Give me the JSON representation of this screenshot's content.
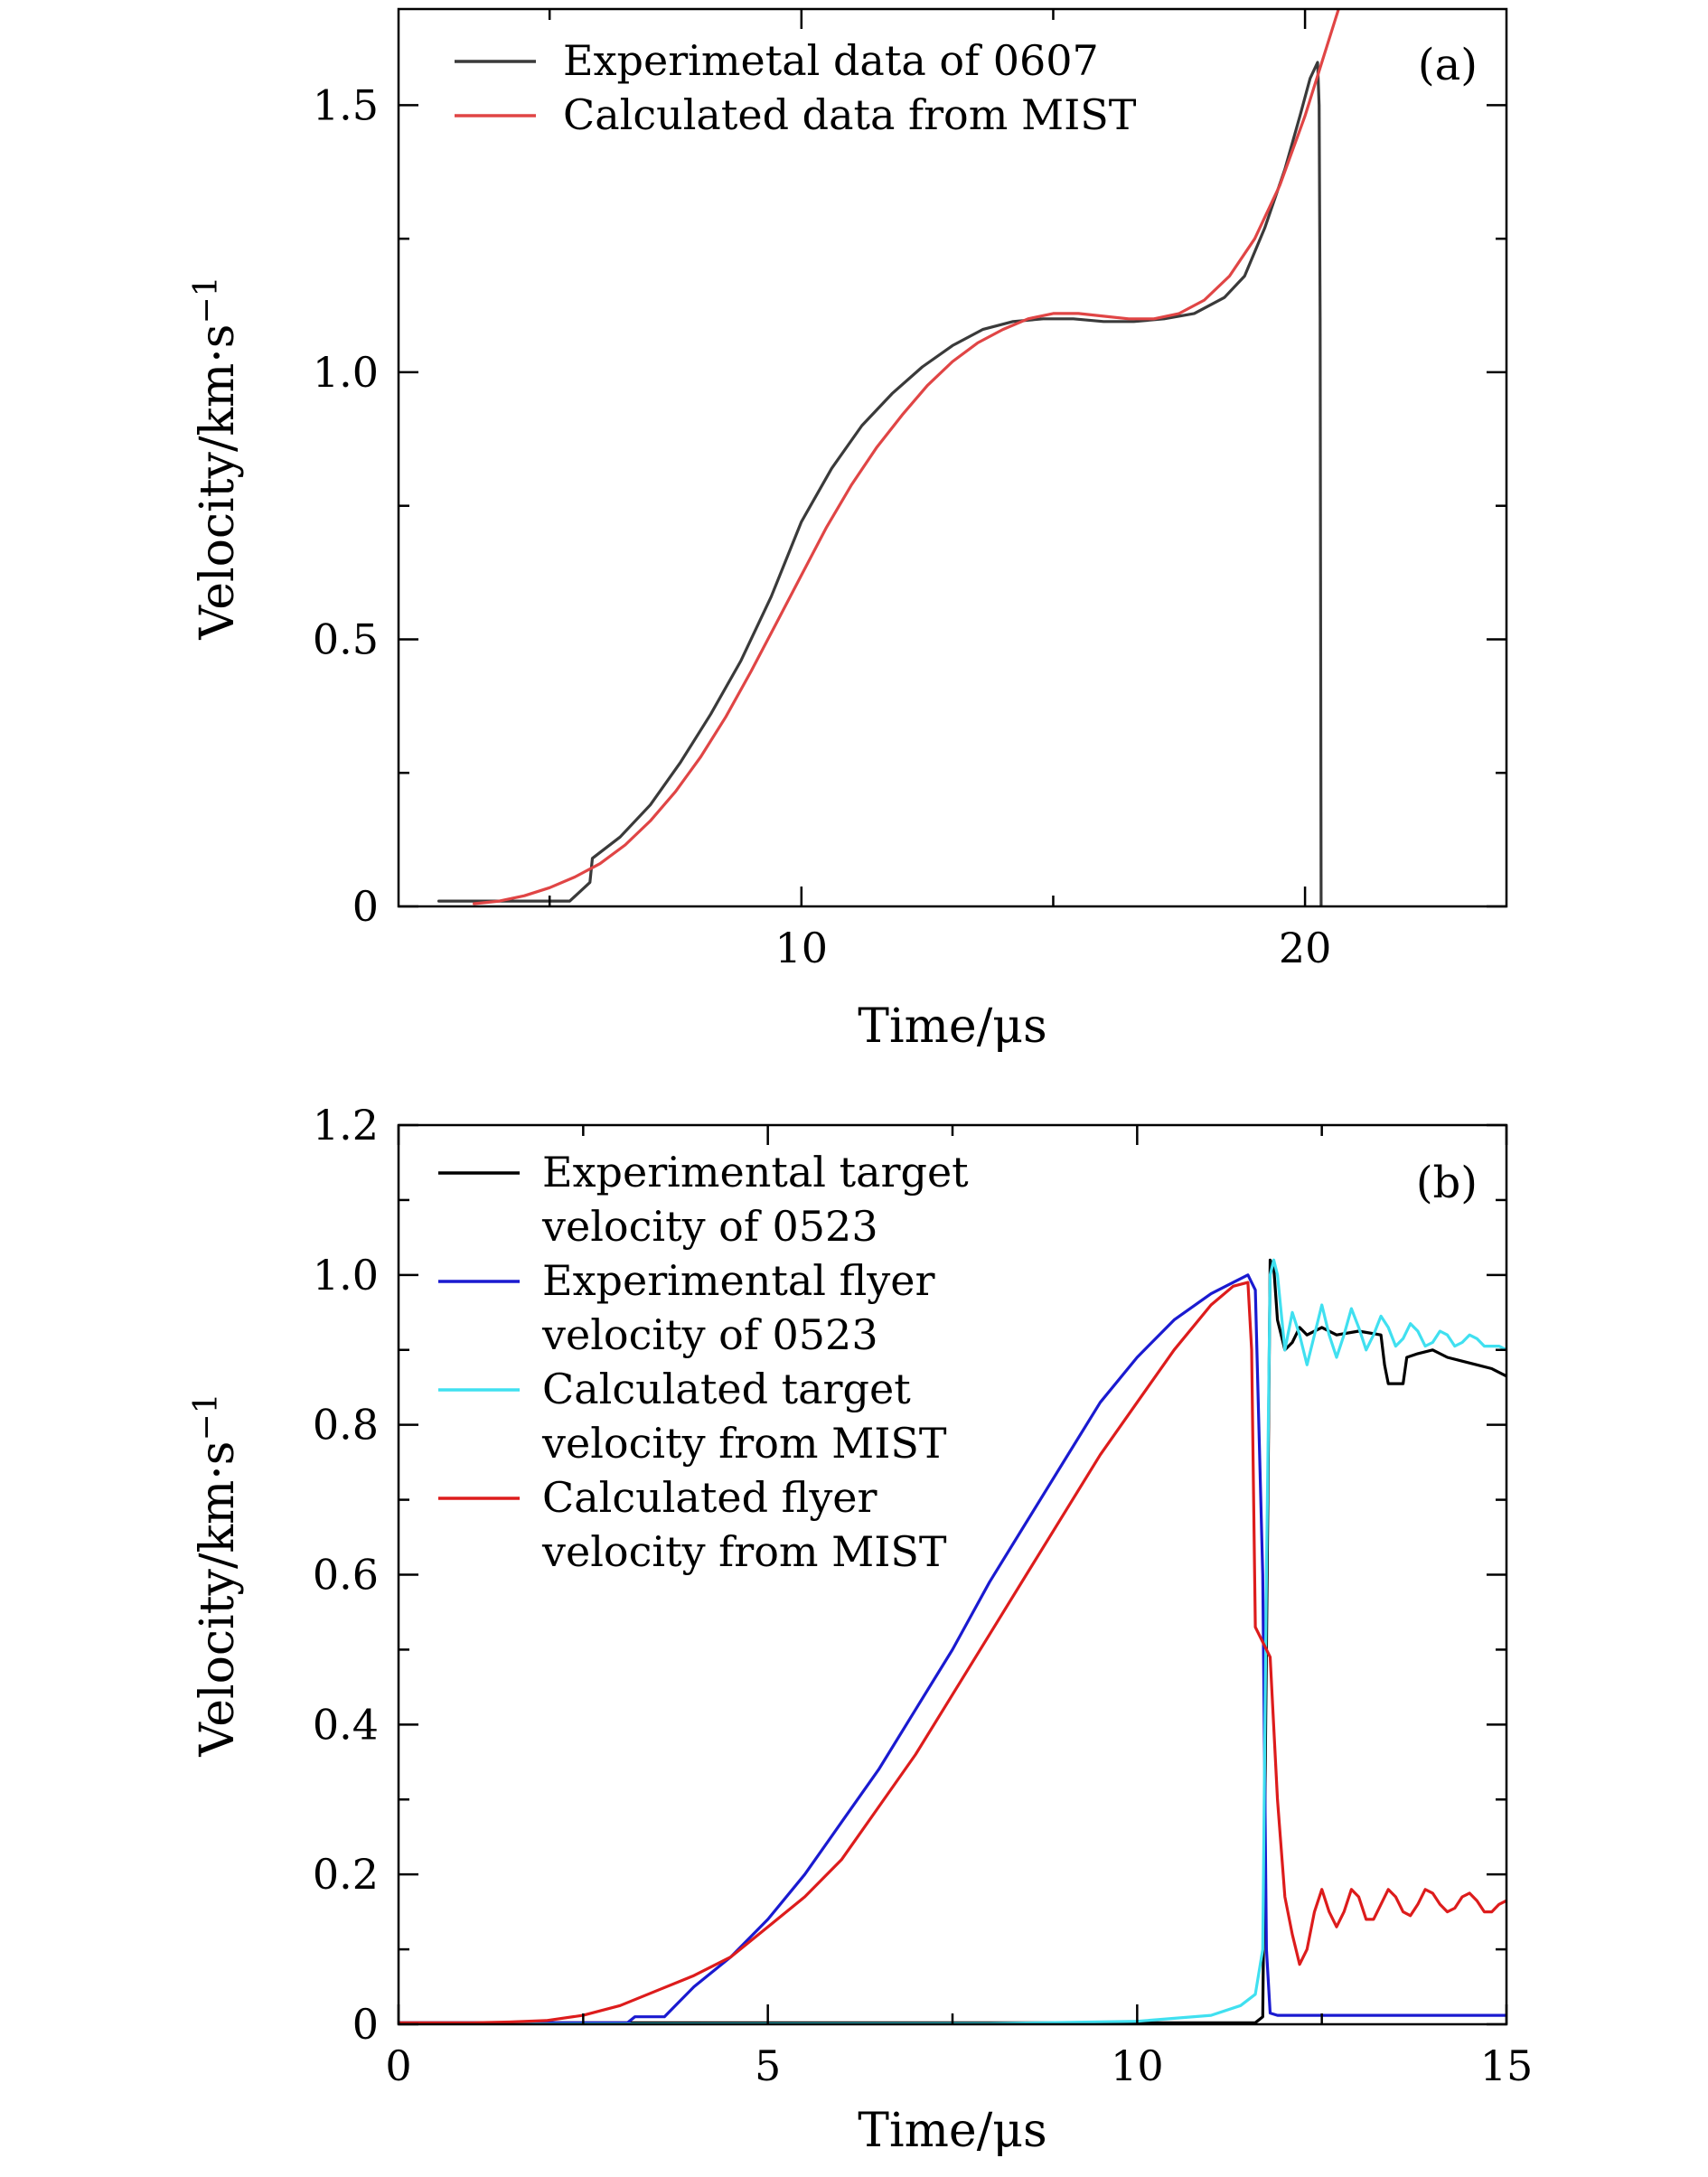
{
  "chart_data": [
    {
      "type": "line",
      "panel_label": "(a)",
      "xlabel": "Time/μs",
      "ylabel": "Velocity/km·s",
      "ylabel_superscript": "−1",
      "xlim": [
        2.0,
        24.0
      ],
      "ylim": [
        0.0,
        1.68
      ],
      "xticks": [
        10,
        20
      ],
      "xtick_labels": [
        "10",
        "20"
      ],
      "xminor": [
        5,
        15
      ],
      "yticks": [
        0,
        0.5,
        1.0,
        1.5
      ],
      "ytick_labels": [
        "0",
        "0.5",
        "1.0",
        "1.5"
      ],
      "yminor": [
        0.25,
        0.75,
        1.25
      ],
      "legend_position": "top-left",
      "series": [
        {
          "name": "Experimetal data of 0607",
          "color": "#3a3a3a",
          "x": [
            2.8,
            3.5,
            4.5,
            5.4,
            5.8,
            5.85,
            6.4,
            7.0,
            7.6,
            8.2,
            8.8,
            9.4,
            10.0,
            10.6,
            11.2,
            11.8,
            12.4,
            13.0,
            13.6,
            14.2,
            14.8,
            15.4,
            16.0,
            16.6,
            17.2,
            17.8,
            18.4,
            18.8,
            19.2,
            19.6,
            19.9,
            20.1,
            20.2,
            20.25,
            20.28,
            20.3,
            20.32
          ],
          "y": [
            0.01,
            0.01,
            0.01,
            0.01,
            0.045,
            0.09,
            0.13,
            0.19,
            0.27,
            0.36,
            0.46,
            0.58,
            0.72,
            0.82,
            0.9,
            0.96,
            1.01,
            1.05,
            1.08,
            1.095,
            1.1,
            1.1,
            1.095,
            1.095,
            1.1,
            1.11,
            1.14,
            1.18,
            1.27,
            1.38,
            1.48,
            1.55,
            1.57,
            1.58,
            1.5,
            1.1,
            0.0
          ]
        },
        {
          "name": "Calculated data from MIST",
          "color": "#e04545",
          "x": [
            3.5,
            4.0,
            4.5,
            5.0,
            5.5,
            6.0,
            6.5,
            7.0,
            7.5,
            8.0,
            8.5,
            9.0,
            9.5,
            10.0,
            10.5,
            11.0,
            11.5,
            12.0,
            12.5,
            13.0,
            13.5,
            14.0,
            14.5,
            15.0,
            15.5,
            16.0,
            16.5,
            17.0,
            17.5,
            18.0,
            18.5,
            19.0,
            19.5,
            20.0,
            20.3,
            20.6,
            20.8
          ],
          "y": [
            0.005,
            0.01,
            0.02,
            0.035,
            0.055,
            0.08,
            0.115,
            0.16,
            0.215,
            0.28,
            0.355,
            0.44,
            0.53,
            0.62,
            0.71,
            0.79,
            0.86,
            0.92,
            0.975,
            1.02,
            1.055,
            1.08,
            1.1,
            1.11,
            1.11,
            1.105,
            1.1,
            1.1,
            1.11,
            1.135,
            1.18,
            1.25,
            1.35,
            1.48,
            1.57,
            1.66,
            1.72
          ]
        }
      ]
    },
    {
      "type": "line",
      "panel_label": "(b)",
      "xlabel": "Time/μs",
      "ylabel": "Velocity/km·s",
      "ylabel_superscript": "−1",
      "xlim": [
        0,
        15
      ],
      "ylim": [
        0,
        1.2
      ],
      "xticks": [
        0,
        5,
        10,
        15
      ],
      "xtick_labels": [
        "0",
        "5",
        "10",
        "15"
      ],
      "xminor": [
        2.5,
        7.5,
        12.5
      ],
      "yticks": [
        0,
        0.2,
        0.4,
        0.6,
        0.8,
        1.0,
        1.2
      ],
      "ytick_labels": [
        "0",
        "0.2",
        "0.4",
        "0.6",
        "0.8",
        "1.0",
        "1.2"
      ],
      "yminor": [
        0.1,
        0.3,
        0.5,
        0.7,
        0.9,
        1.1
      ],
      "legend_position": "top-left",
      "series": [
        {
          "name": "Experimental target velocity of 0523",
          "name_lines": [
            "Experimental target",
            "velocity of 0523"
          ],
          "color": "#000000",
          "x": [
            0,
            5,
            10,
            11.6,
            11.7,
            11.75,
            11.8,
            11.85,
            11.9,
            12.0,
            12.1,
            12.2,
            12.3,
            12.5,
            12.7,
            13.0,
            13.3,
            13.35,
            13.4,
            13.6,
            13.65,
            13.8,
            14.0,
            14.2,
            14.4,
            14.6,
            14.8,
            15.0
          ],
          "y": [
            0.002,
            0.002,
            0.002,
            0.002,
            0.01,
            0.5,
            1.02,
            1.01,
            0.94,
            0.9,
            0.91,
            0.93,
            0.92,
            0.93,
            0.92,
            0.925,
            0.92,
            0.88,
            0.855,
            0.855,
            0.89,
            0.895,
            0.9,
            0.89,
            0.885,
            0.88,
            0.875,
            0.865
          ]
        },
        {
          "name": "Experimental flyer velocity of 0523",
          "name_lines": [
            "Experimental flyer",
            "velocity of 0523"
          ],
          "color": "#1a1ad0",
          "x": [
            0,
            3.1,
            3.2,
            3.6,
            3.7,
            4.0,
            4.5,
            5.0,
            5.5,
            6.0,
            6.5,
            7.0,
            7.5,
            8.0,
            8.5,
            9.0,
            9.5,
            10.0,
            10.5,
            11.0,
            11.3,
            11.5,
            11.6,
            11.7,
            11.75,
            11.8,
            11.9,
            12.5,
            13.5,
            14.5,
            15.0
          ],
          "y": [
            0.002,
            0.002,
            0.01,
            0.01,
            0.02,
            0.05,
            0.09,
            0.14,
            0.2,
            0.27,
            0.34,
            0.42,
            0.5,
            0.59,
            0.67,
            0.75,
            0.83,
            0.89,
            0.94,
            0.975,
            0.99,
            1.0,
            0.98,
            0.6,
            0.1,
            0.015,
            0.012,
            0.012,
            0.012,
            0.012,
            0.012
          ]
        },
        {
          "name": "Calculated target velocity from MIST",
          "name_lines": [
            "Calculated target",
            "velocity from MIST"
          ],
          "color": "#40e0f0",
          "x": [
            0,
            8,
            10,
            11,
            11.4,
            11.6,
            11.7,
            11.75,
            11.8,
            11.85,
            11.9,
            12.0,
            12.1,
            12.2,
            12.3,
            12.4,
            12.5,
            12.6,
            12.7,
            12.8,
            12.9,
            13.0,
            13.1,
            13.2,
            13.3,
            13.4,
            13.5,
            13.6,
            13.7,
            13.8,
            13.9,
            14.0,
            14.1,
            14.2,
            14.3,
            14.4,
            14.5,
            14.6,
            14.7,
            14.8,
            14.9,
            15.0
          ],
          "y": [
            0.0,
            0.001,
            0.004,
            0.012,
            0.025,
            0.04,
            0.1,
            0.6,
            1.0,
            1.02,
            1.0,
            0.9,
            0.95,
            0.92,
            0.88,
            0.92,
            0.96,
            0.92,
            0.89,
            0.92,
            0.955,
            0.93,
            0.9,
            0.92,
            0.945,
            0.93,
            0.905,
            0.915,
            0.935,
            0.925,
            0.905,
            0.91,
            0.925,
            0.92,
            0.905,
            0.91,
            0.92,
            0.915,
            0.905,
            0.905,
            0.905,
            0.9
          ]
        },
        {
          "name": "Calculated flyer velocity from MIST",
          "name_lines": [
            "Calculated flyer",
            "velocity from MIST"
          ],
          "color": "#dd1c1c",
          "x": [
            0,
            1.0,
            1.5,
            2.0,
            2.5,
            3.0,
            3.5,
            4.0,
            4.5,
            5.0,
            5.5,
            6.0,
            6.5,
            7.0,
            7.5,
            8.0,
            8.5,
            9.0,
            9.5,
            10.0,
            10.5,
            11.0,
            11.3,
            11.5,
            11.55,
            11.6,
            11.7,
            11.8,
            11.9,
            12.0,
            12.1,
            12.2,
            12.3,
            12.4,
            12.5,
            12.6,
            12.7,
            12.8,
            12.9,
            13.0,
            13.1,
            13.2,
            13.3,
            13.4,
            13.5,
            13.6,
            13.7,
            13.8,
            13.9,
            14.0,
            14.1,
            14.2,
            14.3,
            14.4,
            14.5,
            14.6,
            14.7,
            14.8,
            14.9,
            15.0
          ],
          "y": [
            0.002,
            0.002,
            0.003,
            0.005,
            0.012,
            0.025,
            0.045,
            0.065,
            0.09,
            0.13,
            0.17,
            0.22,
            0.29,
            0.36,
            0.44,
            0.52,
            0.6,
            0.68,
            0.76,
            0.83,
            0.9,
            0.96,
            0.985,
            0.99,
            0.9,
            0.53,
            0.51,
            0.49,
            0.3,
            0.17,
            0.12,
            0.08,
            0.1,
            0.15,
            0.18,
            0.15,
            0.13,
            0.15,
            0.18,
            0.17,
            0.14,
            0.14,
            0.16,
            0.18,
            0.17,
            0.15,
            0.145,
            0.16,
            0.18,
            0.175,
            0.16,
            0.15,
            0.155,
            0.17,
            0.175,
            0.165,
            0.15,
            0.15,
            0.16,
            0.165
          ]
        }
      ]
    }
  ]
}
